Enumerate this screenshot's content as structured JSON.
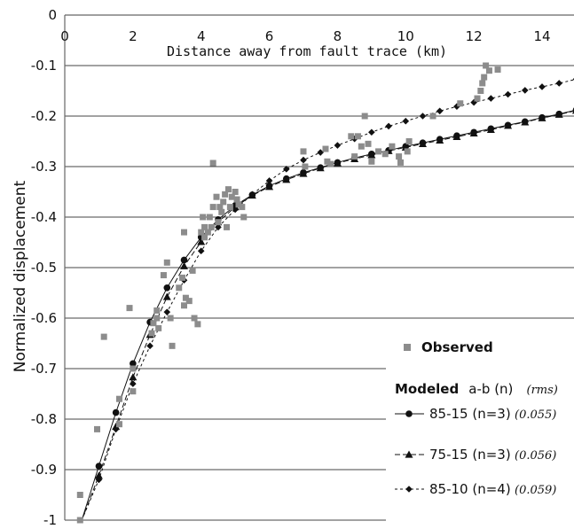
{
  "chart_data": {
    "type": "scatter",
    "title": "",
    "xlabel": "Distance away from fault trace (km)",
    "ylabel": "Normalized displacement",
    "xlim": [
      0,
      15
    ],
    "ylim": [
      -1,
      0
    ],
    "x_ticks": [
      "0",
      "2",
      "4",
      "6",
      "8",
      "10",
      "12",
      "14"
    ],
    "y_ticks": [
      "0",
      "-0.1",
      "-0.2",
      "-0.3",
      "-0.4",
      "-0.5",
      "-0.6",
      "-0.7",
      "-0.8",
      "-0.9",
      "-1"
    ],
    "grid": "horizontal",
    "legend_placement": "bottom-right",
    "legend": {
      "observed_label": "Observed",
      "modeled_header": "Modeled",
      "modeled_header_symbol": "a-b (n)",
      "modeled_header_rms": "(rms)"
    },
    "observed": {
      "name": "Observed",
      "color": "#8c8c8c",
      "points": [
        [
          0.45,
          -0.95
        ],
        [
          0.45,
          -1.0
        ],
        [
          0.95,
          -0.82
        ],
        [
          1.15,
          -0.637
        ],
        [
          1.6,
          -0.81
        ],
        [
          1.6,
          -0.76
        ],
        [
          1.9,
          -0.58
        ],
        [
          2.0,
          -0.7
        ],
        [
          2.0,
          -0.745
        ],
        [
          2.55,
          -0.63
        ],
        [
          2.6,
          -0.61
        ],
        [
          2.7,
          -0.6
        ],
        [
          2.75,
          -0.62
        ],
        [
          2.7,
          -0.585
        ],
        [
          2.9,
          -0.515
        ],
        [
          3.0,
          -0.49
        ],
        [
          3.1,
          -0.6
        ],
        [
          3.15,
          -0.655
        ],
        [
          3.35,
          -0.54
        ],
        [
          3.45,
          -0.52
        ],
        [
          3.5,
          -0.575
        ],
        [
          3.55,
          -0.56
        ],
        [
          3.5,
          -0.43
        ],
        [
          3.65,
          -0.566
        ],
        [
          3.75,
          -0.506
        ],
        [
          3.8,
          -0.6
        ],
        [
          3.9,
          -0.612
        ],
        [
          4.0,
          -0.43
        ],
        [
          4.05,
          -0.4
        ],
        [
          4.1,
          -0.42
        ],
        [
          4.1,
          -0.44
        ],
        [
          4.2,
          -0.43
        ],
        [
          4.25,
          -0.4
        ],
        [
          4.3,
          -0.42
        ],
        [
          4.35,
          -0.293
        ],
        [
          4.35,
          -0.38
        ],
        [
          4.45,
          -0.36
        ],
        [
          4.5,
          -0.41
        ],
        [
          4.55,
          -0.38
        ],
        [
          4.6,
          -0.39
        ],
        [
          4.65,
          -0.37
        ],
        [
          4.7,
          -0.355
        ],
        [
          4.75,
          -0.42
        ],
        [
          4.8,
          -0.345
        ],
        [
          4.85,
          -0.38
        ],
        [
          4.9,
          -0.36
        ],
        [
          5.0,
          -0.35
        ],
        [
          5.05,
          -0.365
        ],
        [
          5.1,
          -0.375
        ],
        [
          5.2,
          -0.38
        ],
        [
          5.25,
          -0.4
        ],
        [
          7.0,
          -0.27
        ],
        [
          7.05,
          -0.3
        ],
        [
          7.65,
          -0.265
        ],
        [
          7.7,
          -0.29
        ],
        [
          7.8,
          -0.295
        ],
        [
          8.4,
          -0.24
        ],
        [
          8.5,
          -0.28
        ],
        [
          8.6,
          -0.24
        ],
        [
          8.7,
          -0.26
        ],
        [
          8.8,
          -0.2
        ],
        [
          8.9,
          -0.255
        ],
        [
          9.0,
          -0.29
        ],
        [
          9.2,
          -0.27
        ],
        [
          9.4,
          -0.275
        ],
        [
          9.6,
          -0.26
        ],
        [
          9.8,
          -0.28
        ],
        [
          9.85,
          -0.292
        ],
        [
          10.05,
          -0.27
        ],
        [
          10.1,
          -0.25
        ],
        [
          10.8,
          -0.2
        ],
        [
          11.6,
          -0.175
        ],
        [
          12.1,
          -0.165
        ],
        [
          12.2,
          -0.15
        ],
        [
          12.25,
          -0.135
        ],
        [
          12.3,
          -0.123
        ],
        [
          12.35,
          -0.1
        ],
        [
          12.45,
          -0.11
        ],
        [
          12.7,
          -0.108
        ]
      ]
    },
    "series": [
      {
        "name": "85-15 (n=3)",
        "rms": "(0.055)",
        "marker": "circle",
        "line": "solid",
        "x": [
          0.5,
          1.0,
          1.5,
          2.0,
          2.5,
          3.0,
          3.5,
          4.0,
          4.5,
          5.0,
          5.5,
          6.0,
          6.5,
          7.0,
          7.5,
          8.0,
          8.5,
          9.0,
          9.5,
          10.0,
          10.5,
          11.0,
          11.5,
          12.0,
          12.5,
          13.0,
          13.5,
          14.0,
          14.5,
          15.0
        ],
        "y": [
          -1.0,
          -0.893,
          -0.787,
          -0.69,
          -0.608,
          -0.54,
          -0.485,
          -0.44,
          -0.405,
          -0.377,
          -0.356,
          -0.338,
          -0.324,
          -0.312,
          -0.302,
          -0.292,
          -0.283,
          -0.275,
          -0.268,
          -0.26,
          -0.253,
          -0.246,
          -0.239,
          -0.232,
          -0.225,
          -0.218,
          -0.211,
          -0.203,
          -0.196,
          -0.188
        ]
      },
      {
        "name": "75-15 (n=3)",
        "rms": "(0.056)",
        "marker": "triangle",
        "line": "dashed",
        "x": [
          0.5,
          1.0,
          1.5,
          2.0,
          2.5,
          3.0,
          3.5,
          4.0,
          4.5,
          5.0,
          5.5,
          6.0,
          6.5,
          7.0,
          7.5,
          8.0,
          8.5,
          9.0,
          9.5,
          10.0,
          10.5,
          11.0,
          11.5,
          12.0,
          12.5,
          13.0,
          13.5,
          14.0,
          14.5,
          15.0
        ],
        "y": [
          -1.0,
          -0.912,
          -0.815,
          -0.717,
          -0.633,
          -0.558,
          -0.497,
          -0.449,
          -0.41,
          -0.38,
          -0.357,
          -0.34,
          -0.326,
          -0.314,
          -0.303,
          -0.293,
          -0.285,
          -0.277,
          -0.269,
          -0.262,
          -0.255,
          -0.248,
          -0.241,
          -0.234,
          -0.227,
          -0.219,
          -0.212,
          -0.204,
          -0.197,
          -0.189
        ]
      },
      {
        "name": "85-10 (n=4)",
        "rms": "(0.059)",
        "marker": "diamond",
        "line": "dotted",
        "x": [
          0.5,
          1.0,
          1.5,
          2.0,
          2.5,
          3.0,
          3.5,
          4.0,
          4.5,
          5.0,
          5.5,
          6.0,
          6.5,
          7.0,
          7.5,
          8.0,
          8.5,
          9.0,
          9.5,
          10.0,
          10.5,
          11.0,
          11.5,
          12.0,
          12.5,
          13.0,
          13.5,
          14.0,
          14.5,
          15.0
        ],
        "y": [
          -1.0,
          -0.92,
          -0.82,
          -0.73,
          -0.655,
          -0.588,
          -0.525,
          -0.467,
          -0.42,
          -0.385,
          -0.355,
          -0.328,
          -0.305,
          -0.287,
          -0.272,
          -0.258,
          -0.245,
          -0.232,
          -0.22,
          -0.21,
          -0.2,
          -0.19,
          -0.181,
          -0.173,
          -0.165,
          -0.157,
          -0.149,
          -0.142,
          -0.135,
          -0.127
        ]
      }
    ]
  }
}
